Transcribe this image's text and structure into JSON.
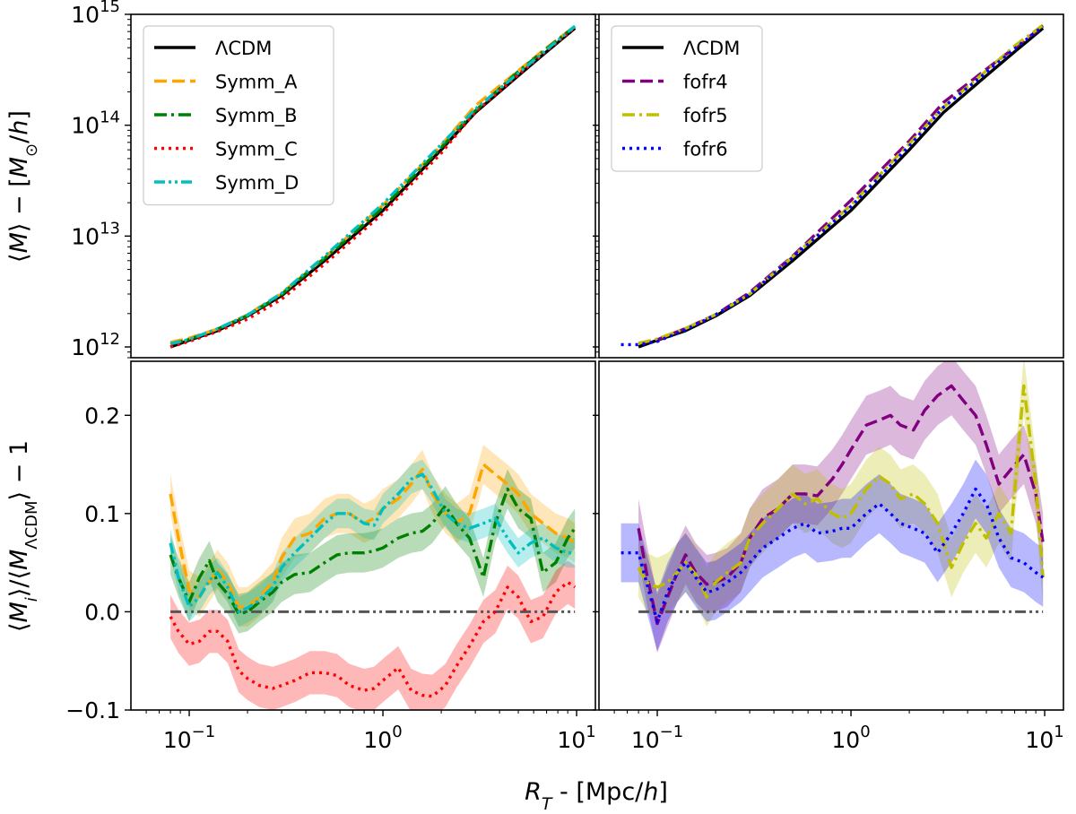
{
  "figure": {
    "xlabel_parts": [
      "R",
      "T",
      " - [Mpc/",
      "h",
      "]"
    ],
    "top_ylabel_parts": [
      "⟨",
      "M",
      "⟩ − [",
      "M",
      "⊙",
      "/",
      "h",
      "]"
    ],
    "bottom_ylabel_parts": [
      "⟨",
      "M",
      "i",
      "⟩/⟨",
      "M",
      "ΛCDM",
      "⟩ − 1"
    ]
  },
  "chart_data": [
    {
      "id": "top-left",
      "type": "line",
      "xscale": "log",
      "yscale": "log",
      "xlim": [
        0.05,
        12.5
      ],
      "ylim": [
        800000000000,
        1000000000000000
      ],
      "ylabel": "⟨M⟩ − [M⊙/h]",
      "yticks": [
        {
          "v": 1000000000000.0,
          "m": "10",
          "e": "12"
        },
        {
          "v": 10000000000000.0,
          "m": "10",
          "e": "13"
        },
        {
          "v": 100000000000000.0,
          "m": "10",
          "e": "14"
        },
        {
          "v": 1000000000000000.0,
          "m": "10",
          "e": "15"
        }
      ],
      "xticks": [],
      "legend": "top-left",
      "series": [
        {
          "name": "ΛCDM",
          "color": "#000000",
          "style": "solid",
          "x": [
            0.08,
            0.1,
            0.14,
            0.2,
            0.3,
            0.5,
            1.0,
            2.0,
            3.0,
            5.0,
            7.0,
            9.8
          ],
          "y": [
            1000000000000.0,
            1150000000000.0,
            1400000000000.0,
            1900000000000.0,
            2900000000000.0,
            6000000000000.0,
            17000000000000.0,
            60000000000000.0,
            130000000000000.0,
            280000000000000.0,
            460000000000000.0,
            750000000000000.0
          ]
        },
        {
          "name": "Symm_A",
          "color": "#ffa500",
          "style": "dash",
          "x": [
            0.08,
            0.1,
            0.14,
            0.2,
            0.3,
            0.5,
            1.0,
            2.0,
            3.0,
            5.0,
            7.0,
            9.8
          ],
          "y": [
            1100000000000.0,
            1200000000000.0,
            1450000000000.0,
            1950000000000.0,
            3050000000000.0,
            6400000000000.0,
            19000000000000.0,
            66000000000000.0,
            150000000000000.0,
            310000000000000.0,
            500000000000000.0,
            780000000000000.0
          ]
        },
        {
          "name": "Symm_B",
          "color": "#008000",
          "style": "dashdot",
          "x": [
            0.08,
            0.1,
            0.14,
            0.2,
            0.3,
            0.5,
            1.0,
            2.0,
            3.0,
            5.0,
            7.0,
            9.8
          ],
          "y": [
            1060000000000.0,
            1170000000000.0,
            1450000000000.0,
            1920000000000.0,
            2980000000000.0,
            6300000000000.0,
            18000000000000.0,
            63000000000000.0,
            135000000000000.0,
            305000000000000.0,
            490000000000000.0,
            780000000000000.0
          ]
        },
        {
          "name": "Symm_C",
          "color": "#ff0000",
          "style": "dot",
          "x": [
            0.08,
            0.1,
            0.14,
            0.2,
            0.3,
            0.5,
            1.0,
            2.0,
            3.0,
            5.0,
            7.0,
            9.8
          ],
          "y": [
            1000000000000.0,
            1120000000000.0,
            1380000000000.0,
            1780000000000.0,
            2700000000000.0,
            5600000000000.0,
            16000000000000.0,
            56000000000000.0,
            132000000000000.0,
            285000000000000.0,
            470000000000000.0,
            760000000000000.0
          ]
        },
        {
          "name": "Symm_D",
          "color": "#00bfbf",
          "style": "dashdotdot",
          "x": [
            0.08,
            0.1,
            0.14,
            0.2,
            0.3,
            0.5,
            1.0,
            2.0,
            3.0,
            5.0,
            7.0,
            9.8
          ],
          "y": [
            1070000000000.0,
            1170000000000.0,
            1460000000000.0,
            1940000000000.0,
            3050000000000.0,
            6600000000000.0,
            19500000000000.0,
            67000000000000.0,
            140000000000000.0,
            295000000000000.0,
            480000000000000.0,
            780000000000000.0
          ]
        }
      ]
    },
    {
      "id": "top-right",
      "type": "line",
      "xscale": "log",
      "yscale": "log",
      "xlim": [
        0.05,
        12.5
      ],
      "ylim": [
        800000000000,
        1000000000000000
      ],
      "yticks": [],
      "xticks": [],
      "legend": "top-left",
      "series": [
        {
          "name": "ΛCDM",
          "color": "#000000",
          "style": "solid",
          "x": [
            0.08,
            0.1,
            0.14,
            0.2,
            0.3,
            0.5,
            1.0,
            2.0,
            3.0,
            5.0,
            7.0,
            9.8
          ],
          "y": [
            1000000000000.0,
            1150000000000.0,
            1400000000000.0,
            1900000000000.0,
            2900000000000.0,
            6000000000000.0,
            17000000000000.0,
            60000000000000.0,
            130000000000000.0,
            280000000000000.0,
            460000000000000.0,
            750000000000000.0
          ]
        },
        {
          "name": "fofr4",
          "color": "#800080",
          "style": "dash",
          "x": [
            0.08,
            0.1,
            0.14,
            0.2,
            0.3,
            0.5,
            1.0,
            2.0,
            3.0,
            5.0,
            7.0,
            9.8
          ],
          "y": [
            1080000000000.0,
            1160000000000.0,
            1470000000000.0,
            1950000000000.0,
            3100000000000.0,
            6600000000000.0,
            21000000000000.0,
            72000000000000.0,
            160000000000000.0,
            320000000000000.0,
            500000000000000.0,
            780000000000000.0
          ]
        },
        {
          "name": "fofr5",
          "color": "#bfbf00",
          "style": "dashdot",
          "x": [
            0.08,
            0.1,
            0.14,
            0.2,
            0.3,
            0.5,
            1.0,
            2.0,
            3.0,
            5.0,
            7.0,
            9.8
          ],
          "y": [
            1080000000000.0,
            1180000000000.0,
            1470000000000.0,
            1960000000000.0,
            3000000000000.0,
            6500000000000.0,
            19000000000000.0,
            68000000000000.0,
            145000000000000.0,
            310000000000000.0,
            520000000000000.0,
            800000000000000.0
          ]
        },
        {
          "name": "fofr6",
          "color": "#0000ff",
          "style": "dot",
          "x": [
            0.065,
            0.08,
            0.1,
            0.14,
            0.2,
            0.3,
            0.5,
            1.0,
            2.0,
            3.0,
            5.0,
            7.0,
            9.8
          ],
          "y": [
            1050000000000.0,
            1050000000000.0,
            1120000000000.0,
            1430000000000.0,
            1950000000000.0,
            3000000000000.0,
            6400000000000.0,
            18500000000000.0,
            65000000000000.0,
            145000000000000.0,
            300000000000000.0,
            490000000000000.0,
            780000000000000.0
          ]
        }
      ]
    },
    {
      "id": "bottom-left",
      "type": "line",
      "xscale": "log",
      "yscale": "linear",
      "xlim": [
        0.05,
        12.5
      ],
      "ylim": [
        -0.1,
        0.255
      ],
      "ylabel": "⟨Mi⟩/⟨MΛCDM⟩ − 1",
      "yticks": [
        {
          "v": -0.1,
          "t": "−0.1"
        },
        {
          "v": 0.0,
          "t": "0.0"
        },
        {
          "v": 0.1,
          "t": "0.1"
        },
        {
          "v": 0.2,
          "t": "0.2"
        }
      ],
      "xticks": [
        {
          "v": 0.1,
          "m": "10",
          "e": "−1"
        },
        {
          "v": 1,
          "m": "10",
          "e": "0"
        },
        {
          "v": 10,
          "m": "10",
          "e": "1"
        }
      ],
      "hline": {
        "y": 0,
        "color": "#555555"
      },
      "series": [
        {
          "name": "Symm_A",
          "color": "#ffa500",
          "style": "dash",
          "band": 0.02,
          "x": [
            0.08,
            0.088,
            0.1,
            0.113,
            0.127,
            0.14,
            0.158,
            0.18,
            0.2,
            0.23,
            0.27,
            0.3,
            0.35,
            0.42,
            0.5,
            0.58,
            0.67,
            0.8,
            0.9,
            1.0,
            1.2,
            1.4,
            1.6,
            1.8,
            2.1,
            2.4,
            2.8,
            3.3,
            3.8,
            4.4,
            5.0,
            5.8,
            6.7,
            7.8,
            9.0,
            9.8
          ],
          "y": [
            0.12,
            0.075,
            0.022,
            0.015,
            0.03,
            0.043,
            0.03,
            0.005,
            0.005,
            0.015,
            0.03,
            0.055,
            0.075,
            0.08,
            0.095,
            0.1,
            0.1,
            0.09,
            0.095,
            0.105,
            0.115,
            0.13,
            0.145,
            0.12,
            0.1,
            0.09,
            0.1,
            0.15,
            0.14,
            0.13,
            0.12,
            0.1,
            0.09,
            0.08,
            0.075,
            0.07
          ]
        },
        {
          "name": "Symm_B",
          "color": "#008000",
          "style": "dashdot",
          "band": 0.02,
          "x": [
            0.08,
            0.088,
            0.1,
            0.113,
            0.127,
            0.14,
            0.158,
            0.18,
            0.2,
            0.23,
            0.27,
            0.3,
            0.35,
            0.42,
            0.5,
            0.58,
            0.67,
            0.8,
            0.9,
            1.0,
            1.2,
            1.4,
            1.6,
            1.8,
            2.1,
            2.4,
            2.8,
            3.3,
            3.8,
            4.4,
            5.0,
            5.8,
            6.7,
            7.8,
            9.0,
            9.8
          ],
          "y": [
            0.058,
            0.035,
            0.01,
            0.035,
            0.052,
            0.03,
            0.018,
            -0.002,
            0.0,
            0.01,
            0.02,
            0.03,
            0.038,
            0.04,
            0.05,
            0.058,
            0.06,
            0.06,
            0.062,
            0.065,
            0.075,
            0.08,
            0.082,
            0.09,
            0.108,
            0.09,
            0.075,
            0.035,
            0.09,
            0.125,
            0.105,
            0.095,
            0.04,
            0.05,
            0.075,
            0.085
          ]
        },
        {
          "name": "Symm_C",
          "color": "#ff0000",
          "style": "dot",
          "band": 0.022,
          "x": [
            0.08,
            0.088,
            0.1,
            0.113,
            0.127,
            0.14,
            0.158,
            0.18,
            0.2,
            0.23,
            0.27,
            0.3,
            0.35,
            0.42,
            0.5,
            0.58,
            0.67,
            0.8,
            0.9,
            1.0,
            1.2,
            1.4,
            1.6,
            1.8,
            2.1,
            2.4,
            2.8,
            3.3,
            3.8,
            4.4,
            5.0,
            5.8,
            6.7,
            7.8,
            9.0,
            9.8
          ],
          "y": [
            -0.005,
            -0.02,
            -0.033,
            -0.03,
            -0.02,
            -0.02,
            -0.03,
            -0.06,
            -0.068,
            -0.075,
            -0.078,
            -0.075,
            -0.07,
            -0.062,
            -0.062,
            -0.065,
            -0.075,
            -0.08,
            -0.078,
            -0.07,
            -0.057,
            -0.08,
            -0.085,
            -0.086,
            -0.075,
            -0.055,
            -0.035,
            -0.01,
            0.0,
            0.025,
            0.015,
            -0.01,
            -0.005,
            0.02,
            0.03,
            0.025
          ]
        },
        {
          "name": "Symm_D",
          "color": "#00bfbf",
          "style": "dashdotdot",
          "band": 0.015,
          "x": [
            0.08,
            0.088,
            0.1,
            0.113,
            0.127,
            0.14,
            0.158,
            0.18,
            0.2,
            0.23,
            0.27,
            0.3,
            0.35,
            0.42,
            0.5,
            0.58,
            0.67,
            0.8,
            0.9,
            1.0,
            1.2,
            1.4,
            1.6,
            1.8,
            2.1,
            2.4,
            2.8,
            3.3,
            3.8,
            4.4,
            5.0,
            5.8,
            6.7,
            7.8,
            9.0,
            9.8
          ],
          "y": [
            0.07,
            0.035,
            0.005,
            0.015,
            0.032,
            0.04,
            0.025,
            0.0,
            0.004,
            0.012,
            0.025,
            0.045,
            0.06,
            0.075,
            0.09,
            0.1,
            0.1,
            0.09,
            0.088,
            0.105,
            0.12,
            0.135,
            0.14,
            0.125,
            0.1,
            0.09,
            0.085,
            0.09,
            0.095,
            0.075,
            0.06,
            0.07,
            0.075,
            0.065,
            0.06,
            0.06
          ]
        }
      ]
    },
    {
      "id": "bottom-right",
      "type": "line",
      "xscale": "log",
      "yscale": "linear",
      "xlim": [
        0.05,
        12.5
      ],
      "ylim": [
        -0.1,
        0.255
      ],
      "yticks": [],
      "xticks": [
        {
          "v": 0.1,
          "m": "10",
          "e": "−1"
        },
        {
          "v": 1,
          "m": "10",
          "e": "0"
        },
        {
          "v": 10,
          "m": "10",
          "e": "1"
        }
      ],
      "hline": {
        "y": 0,
        "color": "#555555"
      },
      "series": [
        {
          "name": "fofr4",
          "color": "#800080",
          "style": "dash",
          "band": 0.03,
          "x": [
            0.08,
            0.088,
            0.1,
            0.113,
            0.127,
            0.14,
            0.158,
            0.18,
            0.2,
            0.23,
            0.27,
            0.3,
            0.35,
            0.42,
            0.5,
            0.58,
            0.67,
            0.8,
            0.9,
            1.0,
            1.2,
            1.4,
            1.6,
            1.8,
            2.1,
            2.4,
            2.8,
            3.3,
            3.8,
            4.4,
            5.0,
            5.8,
            6.7,
            7.8,
            9.0,
            9.8
          ],
          "y": [
            0.085,
            0.04,
            -0.012,
            0.015,
            0.04,
            0.058,
            0.04,
            0.028,
            0.03,
            0.035,
            0.05,
            0.075,
            0.095,
            0.105,
            0.12,
            0.12,
            0.118,
            0.135,
            0.15,
            0.165,
            0.19,
            0.195,
            0.2,
            0.19,
            0.185,
            0.205,
            0.22,
            0.23,
            0.215,
            0.2,
            0.17,
            0.13,
            0.145,
            0.16,
            0.12,
            0.07
          ]
        },
        {
          "name": "fofr5",
          "color": "#bfbf00",
          "style": "dashdot",
          "band": 0.03,
          "x": [
            0.08,
            0.088,
            0.1,
            0.113,
            0.127,
            0.14,
            0.158,
            0.18,
            0.2,
            0.23,
            0.27,
            0.3,
            0.35,
            0.42,
            0.5,
            0.58,
            0.67,
            0.8,
            0.9,
            1.0,
            1.2,
            1.4,
            1.6,
            1.8,
            2.1,
            2.4,
            2.8,
            3.3,
            3.8,
            4.4,
            5.0,
            5.8,
            6.7,
            7.8,
            9.0,
            9.8
          ],
          "y": [
            0.045,
            0.03,
            0.025,
            0.03,
            0.04,
            0.05,
            0.038,
            0.015,
            0.03,
            0.04,
            0.05,
            0.075,
            0.09,
            0.105,
            0.12,
            0.11,
            0.115,
            0.1,
            0.095,
            0.1,
            0.125,
            0.138,
            0.13,
            0.115,
            0.12,
            0.11,
            0.09,
            0.045,
            0.07,
            0.09,
            0.075,
            0.1,
            0.08,
            0.23,
            0.13,
            0.035
          ]
        },
        {
          "name": "fofr6",
          "color": "#0000ff",
          "style": "dot",
          "band": 0.03,
          "x": [
            0.065,
            0.08,
            0.088,
            0.1,
            0.113,
            0.127,
            0.14,
            0.158,
            0.18,
            0.2,
            0.23,
            0.27,
            0.3,
            0.35,
            0.42,
            0.5,
            0.58,
            0.67,
            0.8,
            0.9,
            1.0,
            1.2,
            1.4,
            1.6,
            1.8,
            2.1,
            2.4,
            2.8,
            3.3,
            3.8,
            4.4,
            5.0,
            5.8,
            6.7,
            7.8,
            9.0,
            9.8
          ],
          "y": [
            0.06,
            0.06,
            0.03,
            -0.01,
            0.02,
            0.04,
            0.05,
            0.035,
            0.02,
            0.022,
            0.03,
            0.04,
            0.05,
            0.065,
            0.075,
            0.085,
            0.09,
            0.08,
            0.082,
            0.085,
            0.085,
            0.1,
            0.11,
            0.1,
            0.09,
            0.085,
            0.08,
            0.06,
            0.08,
            0.1,
            0.125,
            0.11,
            0.075,
            0.055,
            0.05,
            0.04,
            0.035
          ]
        }
      ]
    }
  ]
}
